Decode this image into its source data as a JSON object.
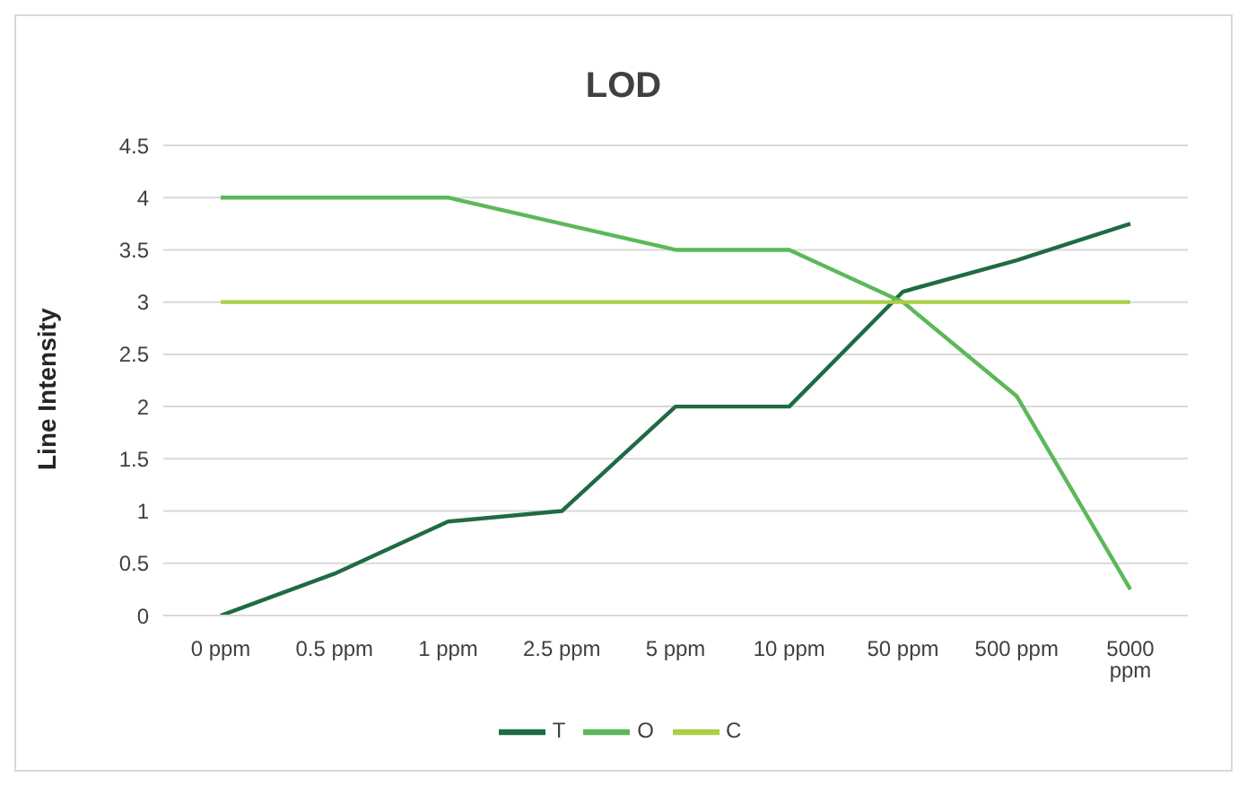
{
  "chart_data": {
    "type": "line",
    "title": "LOD",
    "ylabel": "Line Intensity",
    "categories": [
      "0 ppm",
      "0.5 ppm",
      "1 ppm",
      "2.5 ppm",
      "5 ppm",
      "10 ppm",
      "50 ppm",
      "500 ppm",
      "5000 ppm"
    ],
    "series": [
      {
        "name": "T",
        "color": "#1f6b43",
        "values": [
          0,
          0.4,
          0.9,
          1,
          2,
          2,
          3.1,
          3.4,
          3.75
        ]
      },
      {
        "name": "O",
        "color": "#5cb85a",
        "values": [
          4,
          4,
          4,
          3.75,
          3.5,
          3.5,
          3,
          2.1,
          0.25
        ]
      },
      {
        "name": "C",
        "color": "#a9d046",
        "values": [
          3,
          3,
          3,
          3,
          3,
          3,
          3,
          3,
          3
        ]
      }
    ],
    "ylim": [
      0,
      4.5
    ],
    "yticks": [
      0,
      0.5,
      1,
      1.5,
      2,
      2.5,
      3,
      3.5,
      4,
      4.5
    ],
    "grid": "y",
    "legend": "bottom",
    "marker": "none",
    "line_style": "solid"
  }
}
